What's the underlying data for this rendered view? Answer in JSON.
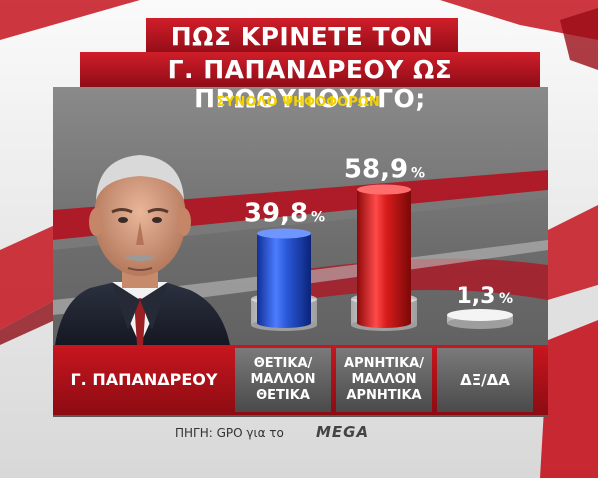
{
  "title_line1": "ΠΩΣ ΚΡΙΝΕΤΕ ΤΟΝ",
  "title_line2": "Γ. ΠΑΠΑΝΔΡΕΟΥ ΩΣ ΠΡΩΘΥΠΟΥΡΓΟ;",
  "subtitle": "ΣΥΝΟΛΟ ΨΗΦΟΦΟΡΩΝ",
  "person_label": "Γ. ΠΑΠΑΝΔΡΕΟΥ",
  "source_text": "ΠΗΓΗ: GPO για το",
  "logo_text": "MEGA",
  "colors": {
    "title_bg": "#b3121f",
    "panel": "#6f6f6f",
    "label_bar": "#b5121b",
    "positive": "#2a58d8",
    "negative": "#d61b1b",
    "accent_yellow": "#f2d200"
  },
  "chart_data": {
    "type": "bar",
    "title": "ΠΩΣ ΚΡΙΝΕΤΕ ΤΟΝ Γ. ΠΑΠΑΝΔΡΕΟΥ ΩΣ ΠΡΩΘΥΠΟΥΡΓΟ;",
    "subtitle": "ΣΥΝΟΛΟ ΨΗΦΟΦΟΡΩΝ",
    "unit": "%",
    "categories": [
      [
        "ΘΕΤΙΚΑ/",
        "ΜΑΛΛΟΝ",
        "ΘΕΤΙΚΑ"
      ],
      [
        "ΑΡΝΗΤΙΚΑ/",
        "ΜΑΛΛΟΝ",
        "ΑΡΝΗΤΙΚΑ"
      ],
      [
        "ΔΞ/ΔΑ"
      ]
    ],
    "values": [
      39.8,
      58.9,
      1.3
    ],
    "value_labels": [
      "39,8",
      "58,9",
      "1,3"
    ],
    "bar_colors": [
      "#2a58d8",
      "#d61b1b",
      "#cfcfcf"
    ],
    "ylim": [
      0,
      60
    ],
    "grid": false,
    "legend": "none"
  }
}
